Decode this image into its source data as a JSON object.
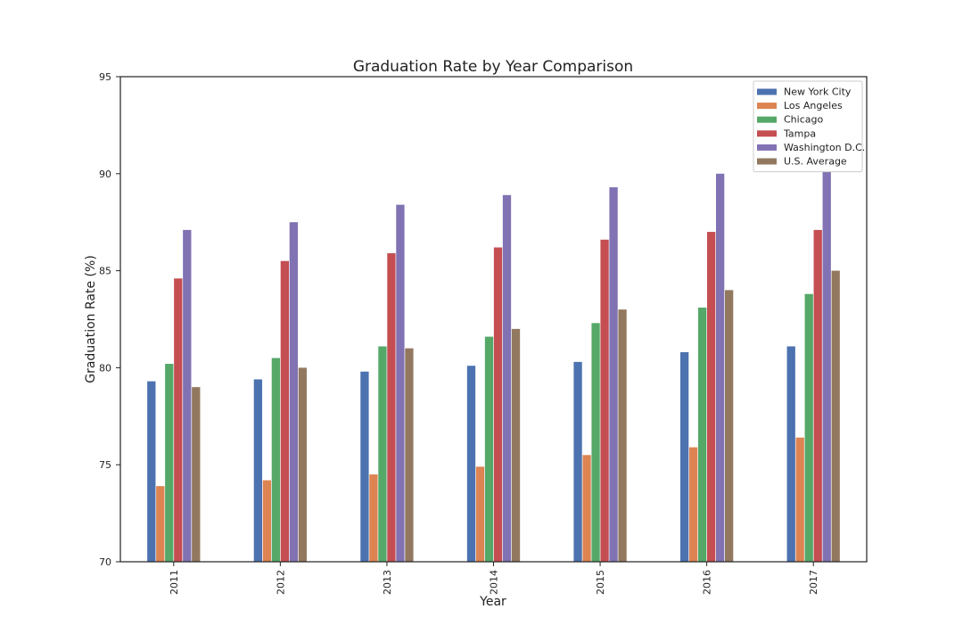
{
  "chart_data": {
    "type": "bar",
    "title": "Graduation Rate by Year Comparison",
    "xlabel": "Year",
    "ylabel": "Graduation Rate (%)",
    "ylim": [
      70,
      95
    ],
    "yticks": [
      70,
      75,
      80,
      85,
      90,
      95
    ],
    "categories": [
      "2011",
      "2012",
      "2013",
      "2014",
      "2015",
      "2016",
      "2017"
    ],
    "grid": false,
    "legend_position": "top-right",
    "series": [
      {
        "name": "New York City",
        "color": "#4c72b0",
        "values": [
          79.3,
          79.4,
          79.8,
          80.1,
          80.3,
          80.8,
          81.1
        ]
      },
      {
        "name": "Los Angeles",
        "color": "#dd8452",
        "values": [
          73.9,
          74.2,
          74.5,
          74.9,
          75.5,
          75.9,
          76.4
        ]
      },
      {
        "name": "Chicago",
        "color": "#55a868",
        "values": [
          80.2,
          80.5,
          81.1,
          81.6,
          82.3,
          83.1,
          83.8
        ]
      },
      {
        "name": "Tampa",
        "color": "#c44e52",
        "values": [
          84.6,
          85.5,
          85.9,
          86.2,
          86.6,
          87.0,
          87.1
        ]
      },
      {
        "name": "Washington D.C.",
        "color": "#8172b3",
        "values": [
          87.1,
          87.5,
          88.4,
          88.9,
          89.3,
          90.0,
          90.3
        ]
      },
      {
        "name": "U.S. Average",
        "color": "#937860",
        "values": [
          79.0,
          80.0,
          81.0,
          82.0,
          83.0,
          84.0,
          85.0
        ]
      }
    ]
  }
}
